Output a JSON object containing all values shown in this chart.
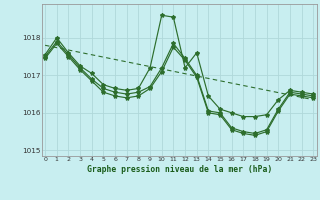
{
  "title": "Graphe pression niveau de la mer (hPa)",
  "background_color": "#c8eef0",
  "grid_color": "#b0d8da",
  "line_color": "#2d6e2d",
  "x_values": [
    0,
    1,
    2,
    3,
    4,
    5,
    6,
    7,
    8,
    9,
    10,
    11,
    12,
    13,
    14,
    15,
    16,
    17,
    18,
    19,
    20,
    21,
    22,
    23
  ],
  "series1": [
    1017.55,
    1018.0,
    1017.6,
    1017.25,
    1017.05,
    1016.75,
    1016.65,
    1016.6,
    1016.65,
    1017.2,
    1018.6,
    1018.55,
    1017.2,
    1017.6,
    1016.45,
    1016.1,
    1016.0,
    1015.9,
    1015.9,
    1015.95,
    1016.35,
    1016.6,
    1016.55,
    1016.5
  ],
  "series2": [
    1017.5,
    1017.9,
    1017.55,
    1017.2,
    1016.9,
    1016.65,
    1016.55,
    1016.5,
    1016.55,
    1016.7,
    1017.2,
    1017.85,
    1017.45,
    1017.0,
    1016.05,
    1016.0,
    1015.6,
    1015.5,
    1015.45,
    1015.55,
    1016.1,
    1016.55,
    1016.5,
    1016.45
  ],
  "series3": [
    1017.45,
    1017.85,
    1017.5,
    1017.15,
    1016.85,
    1016.55,
    1016.45,
    1016.4,
    1016.45,
    1016.65,
    1017.1,
    1017.75,
    1017.4,
    1016.95,
    1016.0,
    1015.95,
    1015.55,
    1015.45,
    1015.4,
    1015.5,
    1016.05,
    1016.5,
    1016.45,
    1016.4
  ],
  "trend_x": [
    0,
    23
  ],
  "trend_y": [
    1017.8,
    1016.35
  ],
  "ylim": [
    1014.85,
    1018.9
  ],
  "yticks": [
    1015,
    1016,
    1017,
    1018
  ],
  "xticks": [
    0,
    1,
    2,
    3,
    4,
    5,
    6,
    7,
    8,
    9,
    10,
    11,
    12,
    13,
    14,
    15,
    16,
    17,
    18,
    19,
    20,
    21,
    22,
    23
  ],
  "xlabel_color": "#1a5c1a",
  "spine_color": "#999999",
  "tick_color": "#333333"
}
